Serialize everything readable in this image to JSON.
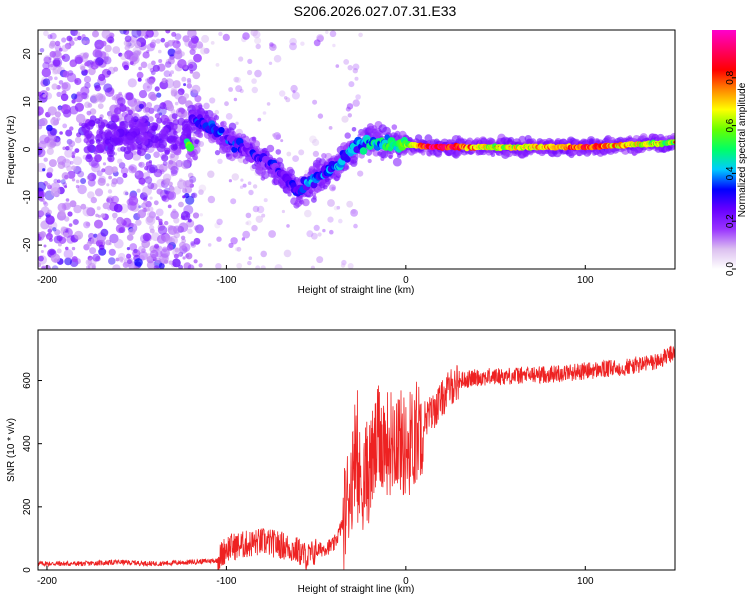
{
  "title": "S206.2026.027.07.31.E33",
  "chart_data": [
    {
      "type": "heatmap",
      "name": "spectrogram",
      "xlabel": "Height of straight line (km)",
      "ylabel": "Frequency (Hz)",
      "xlim": [
        -205,
        150
      ],
      "ylim": [
        -25,
        25
      ],
      "xticks": [
        -200,
        -100,
        0,
        100
      ],
      "yticks": [
        -20,
        -10,
        0,
        10,
        20
      ],
      "xtick_labels": [
        "-200",
        "-100",
        "0",
        "100"
      ],
      "ytick_labels": [
        "-20",
        "-10",
        "0",
        "10",
        "20"
      ],
      "colorbar": {
        "label": "Normalized spectral amplitude",
        "range": [
          0,
          1
        ],
        "ticks": [
          0.0,
          0.2,
          0.4,
          0.6,
          0.8
        ],
        "tick_labels": [
          "0.0",
          "0.2",
          "0.4",
          "0.6",
          "0.8"
        ],
        "colors": [
          "#ffffff",
          "#dcc0f0",
          "#9933ff",
          "#6600ff",
          "#0000ff",
          "#00ccff",
          "#00ff66",
          "#66ff00",
          "#ffff00",
          "#ff8800",
          "#ff0000",
          "#ff0066",
          "#ff00cc"
        ]
      },
      "trend": [
        {
          "x": -120,
          "f": 7,
          "a": 0.25
        },
        {
          "x": -110,
          "f": 5,
          "a": 0.3
        },
        {
          "x": -100,
          "f": 2,
          "a": 0.3
        },
        {
          "x": -90,
          "f": 0,
          "a": 0.25
        },
        {
          "x": -80,
          "f": -2,
          "a": 0.25
        },
        {
          "x": -70,
          "f": -5,
          "a": 0.25
        },
        {
          "x": -60,
          "f": -9,
          "a": 0.3
        },
        {
          "x": -50,
          "f": -6,
          "a": 0.35
        },
        {
          "x": -40,
          "f": -4,
          "a": 0.35
        },
        {
          "x": -30,
          "f": 0,
          "a": 0.35
        },
        {
          "x": -20,
          "f": 2,
          "a": 0.4
        },
        {
          "x": -10,
          "f": 1,
          "a": 0.45
        },
        {
          "x": 0,
          "f": 1,
          "a": 0.55
        },
        {
          "x": 15,
          "f": 0.5,
          "a": 0.95
        },
        {
          "x": 50,
          "f": 0.5,
          "a": 0.6
        },
        {
          "x": 100,
          "f": 0.5,
          "a": 0.8
        },
        {
          "x": 150,
          "f": 1.5,
          "a": 0.55
        }
      ]
    },
    {
      "type": "line",
      "name": "snr",
      "xlabel": "Height of straight line (km)",
      "ylabel": "SNR (10 * v/v)",
      "xlim": [
        -205,
        150
      ],
      "ylim": [
        0,
        760
      ],
      "xticks": [
        -200,
        -100,
        0,
        100
      ],
      "yticks": [
        0,
        200,
        400,
        600
      ],
      "xtick_labels": [
        "-200",
        "-100",
        "0",
        "100"
      ],
      "ytick_labels": [
        "0",
        "200",
        "400",
        "600"
      ],
      "color": "#ee2222",
      "series": [
        {
          "name": "SNR",
          "x": [
            -205,
            -180,
            -160,
            -140,
            -120,
            -105,
            -100,
            -90,
            -80,
            -70,
            -60,
            -55,
            -50,
            -40,
            -35,
            -30,
            -25,
            -20,
            -15,
            -10,
            -5,
            0,
            5,
            10,
            15,
            20,
            25,
            30,
            40,
            60,
            80,
            100,
            120,
            140,
            150
          ],
          "values": [
            20,
            20,
            25,
            20,
            25,
            30,
            70,
            80,
            90,
            80,
            60,
            40,
            60,
            80,
            150,
            300,
            280,
            320,
            420,
            400,
            430,
            380,
            430,
            480,
            500,
            540,
            580,
            600,
            610,
            615,
            620,
            630,
            640,
            660,
            690
          ]
        }
      ]
    }
  ]
}
